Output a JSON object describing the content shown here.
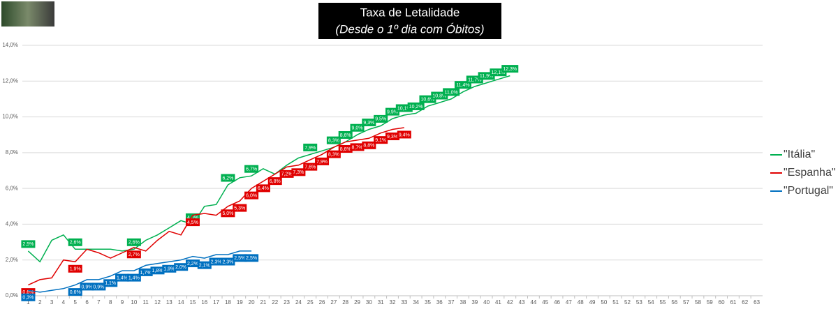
{
  "chart_data": {
    "type": "line",
    "title": "Taxa de Letalidade",
    "subtitle": "(Desde o 1º dia com Óbitos)",
    "categories": [
      1,
      2,
      3,
      4,
      5,
      6,
      7,
      8,
      9,
      10,
      11,
      12,
      13,
      14,
      15,
      16,
      17,
      18,
      19,
      20,
      21,
      22,
      23,
      24,
      25,
      26,
      27,
      28,
      29,
      30,
      31,
      32,
      33,
      34,
      35,
      36,
      37,
      38,
      39,
      40,
      41,
      42,
      43,
      44,
      45,
      46,
      47,
      48,
      49,
      50,
      51,
      52,
      53,
      54,
      55,
      56,
      57,
      58,
      59,
      60,
      61,
      62,
      63
    ],
    "ylim": [
      0,
      14
    ],
    "yticks": [
      {
        "value": 0,
        "label": "0,0%"
      },
      {
        "value": 2,
        "label": "2,0%"
      },
      {
        "value": 4,
        "label": "4,0%"
      },
      {
        "value": 6,
        "label": "6,0%"
      },
      {
        "value": 8,
        "label": "8,0%"
      },
      {
        "value": 10,
        "label": "10,0%"
      },
      {
        "value": 12,
        "label": "12,0%"
      },
      {
        "value": 14,
        "label": "14,0%"
      }
    ],
    "grid": true,
    "legend": "right",
    "series": [
      {
        "name": "\"Itália\"",
        "color": "#00b050",
        "values": [
          2.5,
          1.9,
          3.1,
          3.4,
          2.6,
          2.6,
          2.6,
          2.6,
          2.5,
          2.6,
          3.1,
          3.4,
          3.8,
          4.2,
          4.0,
          5.0,
          5.1,
          6.2,
          6.6,
          6.7,
          7.1,
          6.8,
          7.3,
          7.7,
          7.9,
          8.1,
          8.3,
          8.6,
          9.0,
          9.3,
          9.5,
          9.9,
          10.1,
          10.2,
          10.6,
          10.8,
          11.0,
          11.4,
          11.7,
          11.9,
          12.1,
          12.3,
          null,
          null,
          null,
          null,
          null,
          null,
          null,
          null,
          null,
          null,
          null,
          null,
          null,
          null,
          null,
          null,
          null,
          null,
          null,
          null,
          null
        ],
        "value_labels": [
          "2,5%",
          null,
          null,
          null,
          "2,6%",
          null,
          null,
          null,
          null,
          "2,6%",
          null,
          null,
          null,
          null,
          "4,0%",
          null,
          null,
          "6,2%",
          null,
          "6,7%",
          null,
          null,
          null,
          null,
          "7,9%",
          null,
          "8,3%",
          "8,6%",
          "9,0%",
          "9,3%",
          "9,5%",
          "9,9%",
          "10,1%",
          "10,2%",
          "10,6%",
          "10,8%",
          "11,0%",
          "11,4%",
          "11,7%",
          "11,9%",
          "12,1%",
          "12,3%",
          null,
          null,
          null,
          null,
          null,
          null,
          null,
          null,
          null,
          null,
          null,
          null,
          null,
          null,
          null,
          null,
          null,
          null,
          null,
          null,
          null
        ]
      },
      {
        "name": "\"Espanha\"",
        "color": "#e00000",
        "values": [
          0.6,
          0.9,
          1.0,
          2.0,
          1.9,
          2.6,
          2.4,
          2.1,
          2.4,
          2.7,
          2.5,
          3.1,
          3.6,
          3.4,
          4.5,
          4.6,
          4.5,
          5.0,
          5.3,
          6.0,
          6.4,
          6.8,
          7.2,
          7.3,
          7.6,
          7.9,
          8.3,
          8.6,
          8.7,
          8.8,
          9.1,
          9.3,
          9.4,
          null,
          null,
          null,
          null,
          null,
          null,
          null,
          null,
          null,
          null,
          null,
          null,
          null,
          null,
          null,
          null,
          null,
          null,
          null,
          null,
          null,
          null,
          null,
          null,
          null,
          null,
          null,
          null,
          null,
          null
        ],
        "value_labels": [
          "0,6%",
          null,
          null,
          null,
          "1,9%",
          null,
          null,
          null,
          null,
          "2,7%",
          null,
          null,
          null,
          null,
          "4,5%",
          null,
          null,
          "5,0%",
          "5,3%",
          "6,0%",
          "6,4%",
          "6,8%",
          "7,2%",
          "7,3%",
          "7,6%",
          "7,9%",
          "8,3%",
          "8,6%",
          "8,7%",
          "8,8%",
          "9,1%",
          "9,3%",
          "9,4%",
          null,
          null,
          null,
          null,
          null,
          null,
          null,
          null,
          null,
          null,
          null,
          null,
          null,
          null,
          null,
          null,
          null,
          null,
          null,
          null,
          null,
          null,
          null,
          null,
          null,
          null,
          null,
          null,
          null,
          null
        ]
      },
      {
        "name": "\"Portugal\"",
        "color": "#0070c0",
        "values": [
          0.3,
          0.2,
          0.3,
          0.4,
          0.6,
          0.9,
          0.9,
          1.1,
          1.4,
          1.4,
          1.7,
          1.8,
          1.9,
          2.0,
          2.2,
          2.1,
          2.3,
          2.3,
          2.5,
          2.5,
          null,
          null,
          null,
          null,
          null,
          null,
          null,
          null,
          null,
          null,
          null,
          null,
          null,
          null,
          null,
          null,
          null,
          null,
          null,
          null,
          null,
          null,
          null,
          null,
          null,
          null,
          null,
          null,
          null,
          null,
          null,
          null,
          null,
          null,
          null,
          null,
          null,
          null,
          null,
          null,
          null,
          null,
          null
        ],
        "value_labels": [
          "0,3%",
          null,
          null,
          null,
          "0,6%",
          "0,9%",
          "0,9%",
          "1,1%",
          "1,4%",
          "1,4%",
          "1,7%",
          "1,8%",
          "1,9%",
          "2,0%",
          "2,2%",
          "2,1%",
          "2,3%",
          "2,3%",
          "2,5%",
          "2,5%",
          null,
          null,
          null,
          null,
          null,
          null,
          null,
          null,
          null,
          null,
          null,
          null,
          null,
          null,
          null,
          null,
          null,
          null,
          null,
          null,
          null,
          null,
          null,
          null,
          null,
          null,
          null,
          null,
          null,
          null,
          null,
          null,
          null,
          null,
          null,
          null,
          null,
          null,
          null,
          null,
          null,
          null,
          null
        ]
      }
    ]
  }
}
